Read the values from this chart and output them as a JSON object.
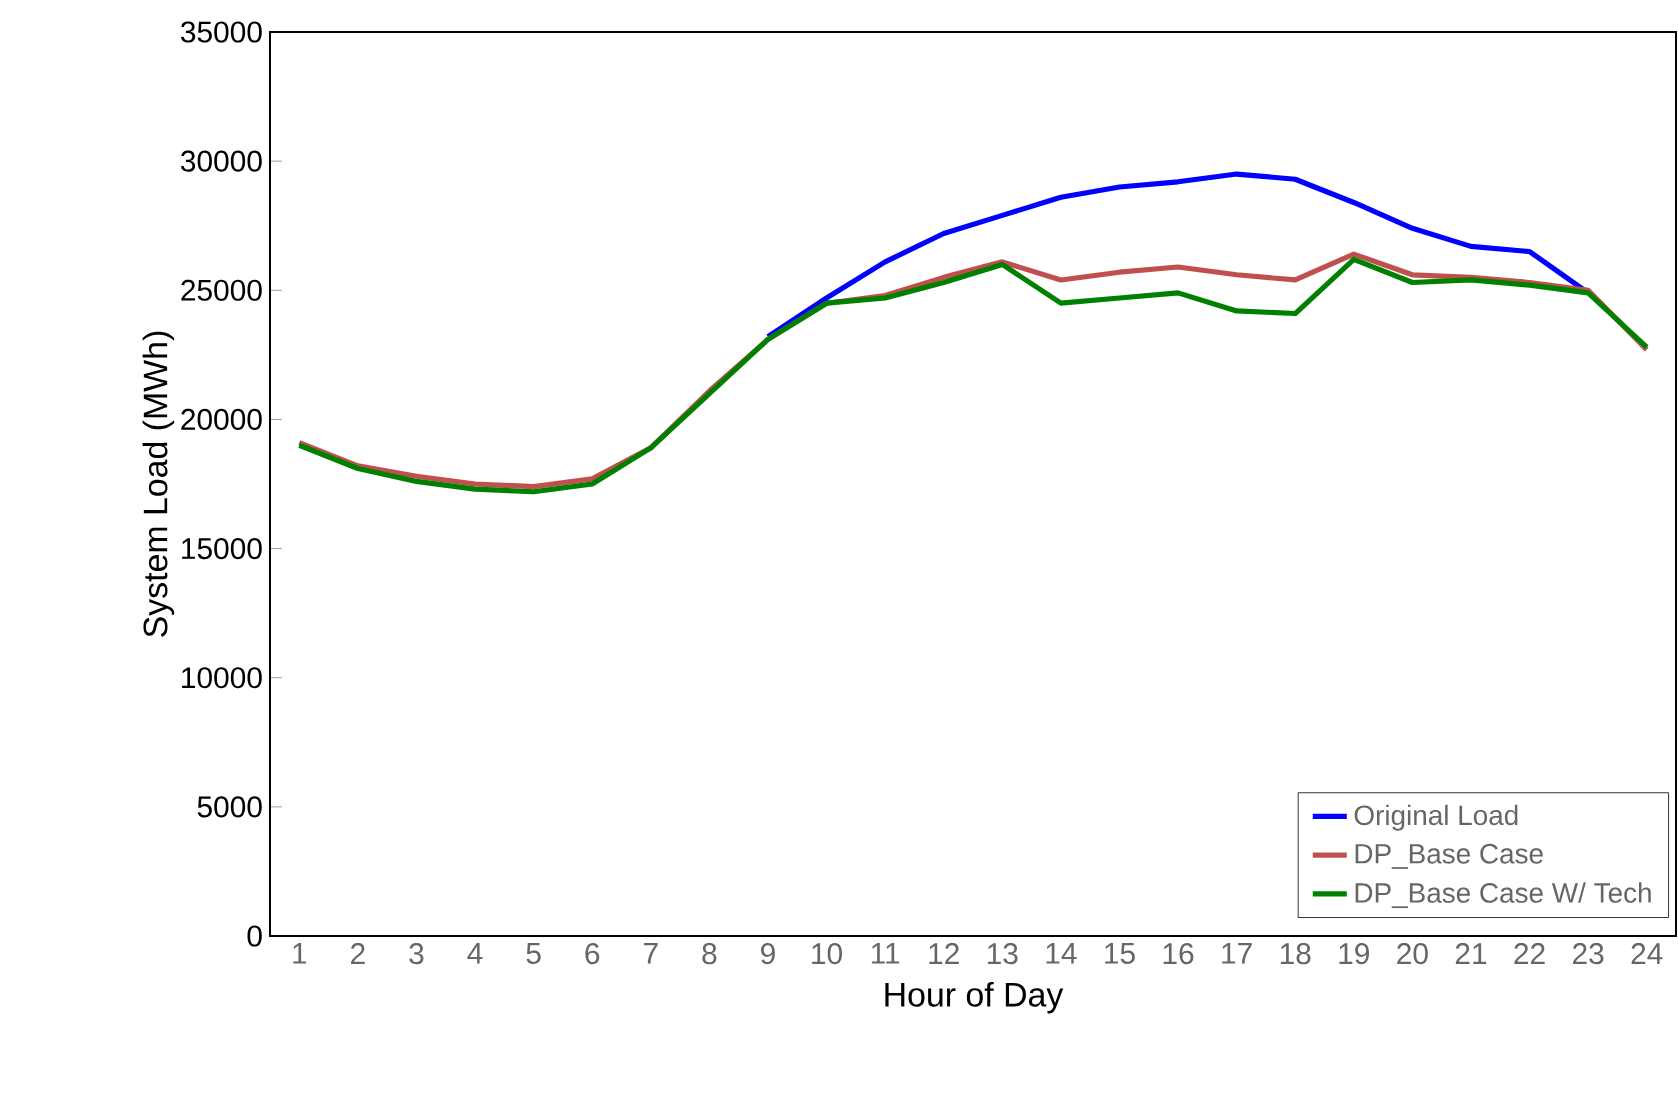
{
  "chart_data": {
    "type": "line",
    "xlabel": "Hour of Day",
    "ylabel": "System Load (MWh)",
    "categories": [
      "1",
      "2",
      "3",
      "4",
      "5",
      "6",
      "7",
      "8",
      "9",
      "10",
      "11",
      "12",
      "13",
      "14",
      "15",
      "16",
      "17",
      "18",
      "19",
      "20",
      "21",
      "22",
      "23",
      "24"
    ],
    "ylim": [
      0,
      35000
    ],
    "yticks": [
      0,
      5000,
      10000,
      15000,
      20000,
      25000,
      30000,
      35000
    ],
    "grid": false,
    "legend": "bottom right",
    "marker": "none",
    "line_style": "solid",
    "series": [
      {
        "name": "Original Load",
        "color": "#0000ff",
        "values": [
          null,
          null,
          null,
          null,
          null,
          null,
          null,
          null,
          23200,
          24700,
          26100,
          27200,
          27900,
          28600,
          29000,
          29200,
          29500,
          29300,
          28400,
          27400,
          26700,
          26500,
          24900,
          null
        ]
      },
      {
        "name": "DP_Base Case",
        "color": "#c0504d",
        "values": [
          19100,
          18200,
          17800,
          17500,
          17400,
          17700,
          18900,
          21100,
          23100,
          24500,
          24800,
          25500,
          26100,
          25400,
          25700,
          25900,
          25600,
          25400,
          26400,
          25600,
          25500,
          25300,
          25000,
          22700
        ]
      },
      {
        "name": "DP_Base Case W/ Tech",
        "color": "#008000",
        "values": [
          19000,
          18100,
          17600,
          17300,
          17200,
          17500,
          18900,
          21000,
          23100,
          24500,
          24700,
          25300,
          26000,
          24500,
          24700,
          24900,
          24200,
          24100,
          26200,
          25300,
          25400,
          25200,
          24900,
          22800
        ]
      }
    ]
  }
}
